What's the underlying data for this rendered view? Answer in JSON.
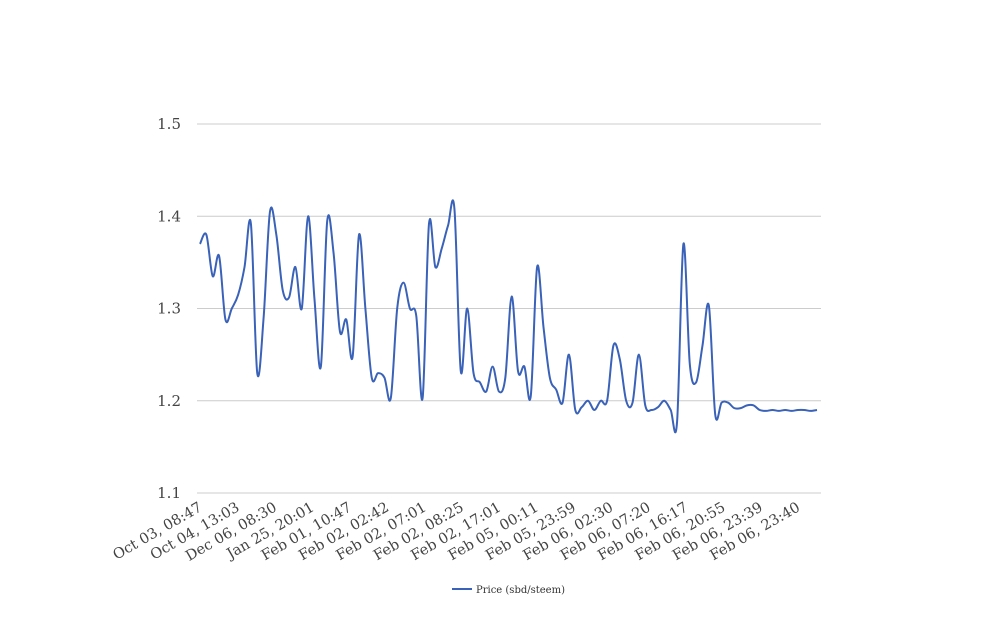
{
  "chart_data": {
    "type": "line",
    "title": "",
    "xlabel": "",
    "ylabel": "",
    "ylim": [
      1.1,
      1.5
    ],
    "yticks": [
      "1.1",
      "1.2",
      "1.3",
      "1.4",
      "1.5"
    ],
    "grid": true,
    "legend_position": "bottom-center",
    "colors": {
      "series": "#3a62b8",
      "grid": "#cccccc",
      "text": "#444444"
    },
    "x_tick_labels": [
      "Oct 03, 08:47",
      "Oct 04, 13:03",
      "Dec 06, 08:30",
      "Jan 25, 20:01",
      "Feb 01, 10:47",
      "Feb 02, 02:42",
      "Feb 02, 07:01",
      "Feb 02, 08:25",
      "Feb 02, 17:01",
      "Feb 05, 00:11",
      "Feb 05, 23:59",
      "Feb 06, 02:30",
      "Feb 06, 07:20",
      "Feb 06, 16:17",
      "Feb 06, 20:55",
      "Feb 06, 23:39",
      "Feb 06, 23:40"
    ],
    "series": [
      {
        "name": "Price (sbd/steem)",
        "values": [
          1.37,
          1.38,
          1.335,
          1.357,
          1.288,
          1.3,
          1.315,
          1.345,
          1.392,
          1.23,
          1.29,
          1.405,
          1.38,
          1.32,
          1.312,
          1.345,
          1.3,
          1.4,
          1.31,
          1.237,
          1.395,
          1.36,
          1.275,
          1.288,
          1.248,
          1.38,
          1.3,
          1.225,
          1.23,
          1.225,
          1.203,
          1.3,
          1.328,
          1.3,
          1.292,
          1.203,
          1.392,
          1.345,
          1.365,
          1.39,
          1.408,
          1.232,
          1.3,
          1.23,
          1.22,
          1.21,
          1.237,
          1.21,
          1.225,
          1.313,
          1.232,
          1.237,
          1.205,
          1.345,
          1.28,
          1.225,
          1.212,
          1.198,
          1.25,
          1.19,
          1.193,
          1.2,
          1.19,
          1.2,
          1.2,
          1.26,
          1.245,
          1.2,
          1.198,
          1.25,
          1.195,
          1.19,
          1.193,
          1.2,
          1.19,
          1.177,
          1.37,
          1.24,
          1.22,
          1.26,
          1.303,
          1.185,
          1.198,
          1.198,
          1.192,
          1.192,
          1.195,
          1.195,
          1.19,
          1.189,
          1.19,
          1.189,
          1.19,
          1.189,
          1.19,
          1.19,
          1.189,
          1.19
        ]
      }
    ]
  }
}
